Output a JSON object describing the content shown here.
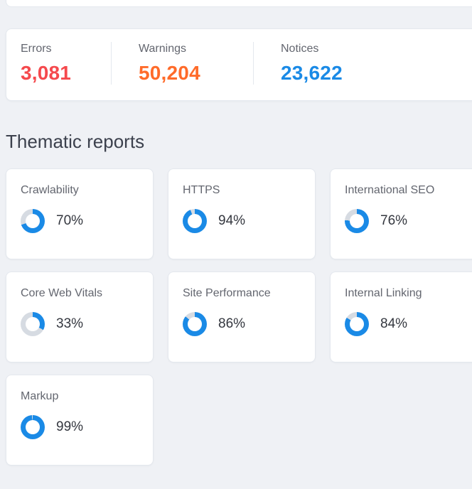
{
  "overview": {
    "stats": [
      {
        "label": "Errors",
        "value": "3,081",
        "color": "#f5494d"
      },
      {
        "label": "Warnings",
        "value": "50,204",
        "color": "#ff6b2a"
      },
      {
        "label": "Notices",
        "value": "23,622",
        "color": "#1a8ae6"
      }
    ]
  },
  "thematic": {
    "title": "Thematic reports",
    "accent_color": "#1a8ae6",
    "track_color": "#d6dbe2",
    "cards": [
      {
        "label": "Crawlability",
        "percent": 70,
        "percent_label": "70%"
      },
      {
        "label": "HTTPS",
        "percent": 94,
        "percent_label": "94%"
      },
      {
        "label": "International SEO",
        "percent": 76,
        "percent_label": "76%"
      },
      {
        "label": "Core Web Vitals",
        "percent": 33,
        "percent_label": "33%"
      },
      {
        "label": "Site Performance",
        "percent": 86,
        "percent_label": "86%"
      },
      {
        "label": "Internal Linking",
        "percent": 84,
        "percent_label": "84%"
      },
      {
        "label": "Markup",
        "percent": 99,
        "percent_label": "99%"
      }
    ]
  }
}
